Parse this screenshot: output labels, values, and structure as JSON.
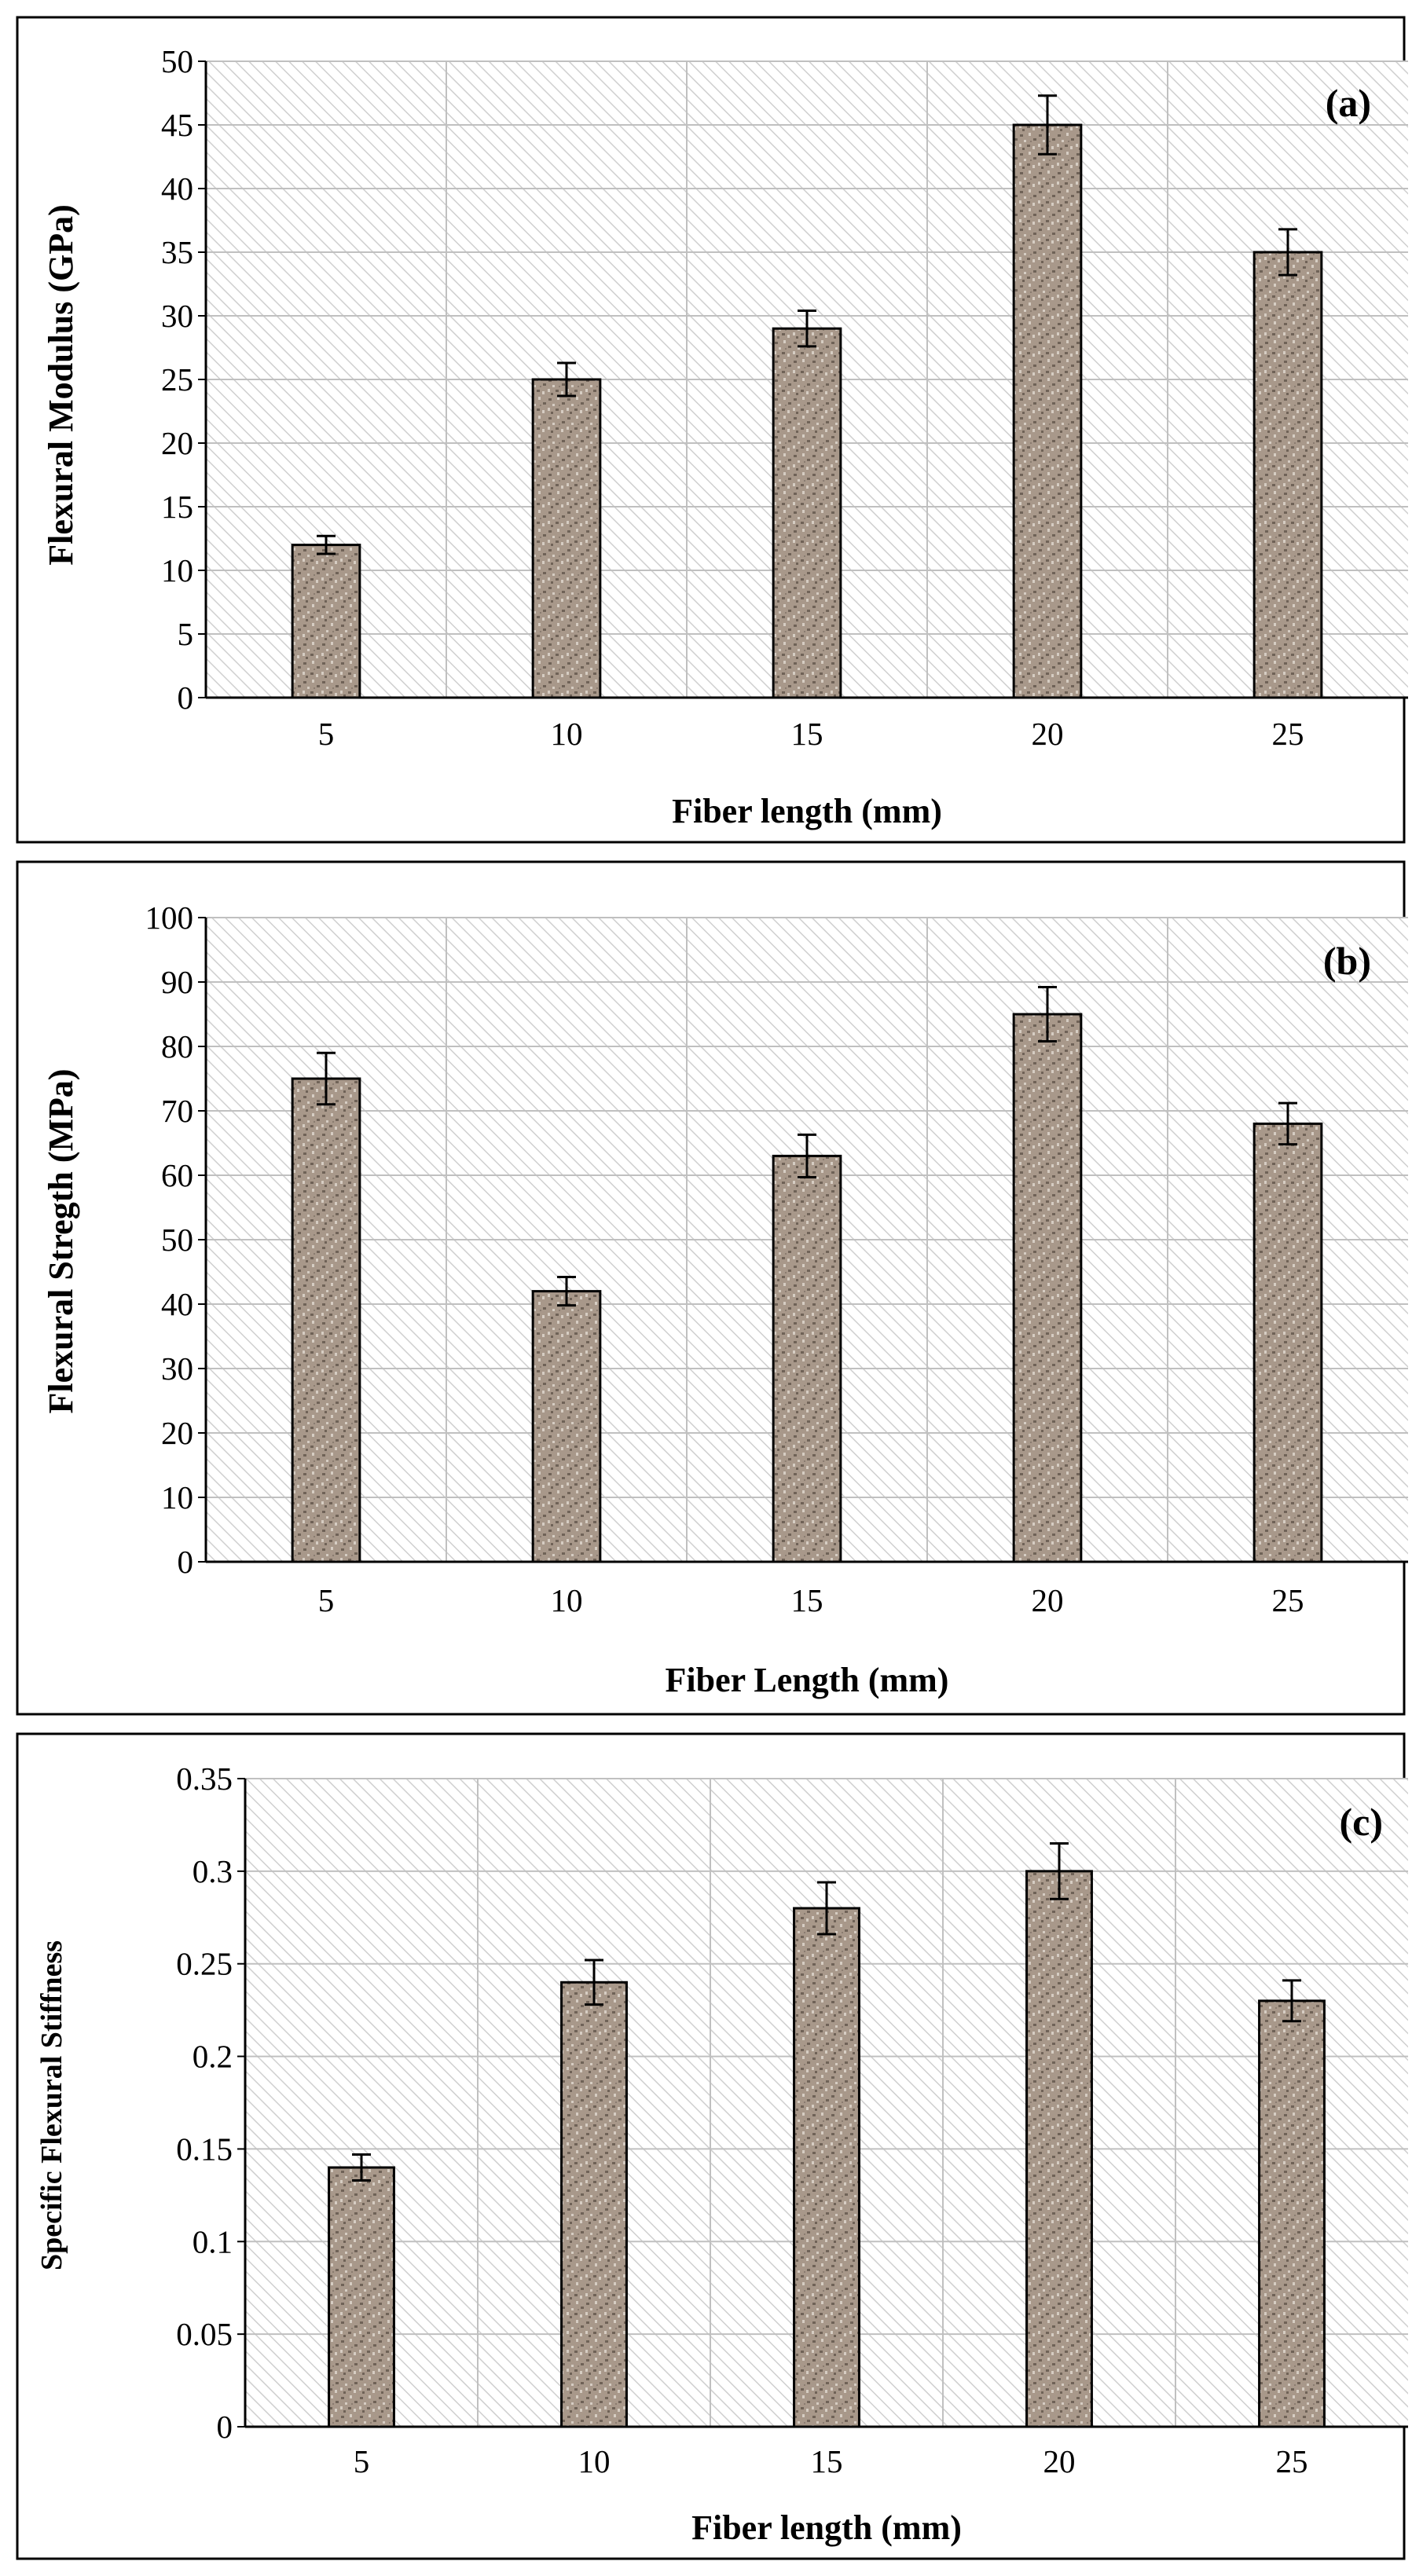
{
  "colors": {
    "frame": "#000000",
    "bar_base": "#a8988a",
    "bar_dark": "#6f6257",
    "bar_light": "#d6cdc3",
    "hatch": "#cfcfcf",
    "grid": "#c0c0c0"
  },
  "chart_data": [
    {
      "type": "bar",
      "panel_label": "(a)",
      "title": "",
      "xlabel": "Fiber length (mm)",
      "ylabel": "Flexural  Modulus (GPa)",
      "categories": [
        "5",
        "10",
        "15",
        "20",
        "25"
      ],
      "values": [
        12,
        25,
        29,
        45,
        35
      ],
      "errors": [
        0.7,
        1.3,
        1.4,
        2.3,
        1.8
      ],
      "ylim": [
        0,
        50
      ],
      "yticks": [
        0,
        5,
        10,
        15,
        20,
        25,
        30,
        35,
        40,
        45,
        50
      ],
      "ytick_labels": [
        "0",
        "5",
        "10",
        "15",
        "20",
        "25",
        "30",
        "35",
        "40",
        "45",
        "50"
      ],
      "grid": true
    },
    {
      "type": "bar",
      "panel_label": "(b)",
      "title": "",
      "xlabel": "Fiber Length (mm)",
      "ylabel": "Flexural  Stregth (MPa)",
      "categories": [
        "5",
        "10",
        "15",
        "20",
        "25"
      ],
      "values": [
        75,
        42,
        63,
        85,
        68
      ],
      "errors": [
        4,
        2.2,
        3.3,
        4.2,
        3.2
      ],
      "ylim": [
        0,
        100
      ],
      "yticks": [
        0,
        10,
        20,
        30,
        40,
        50,
        60,
        70,
        80,
        90,
        100
      ],
      "ytick_labels": [
        "0",
        "10",
        "20",
        "30",
        "40",
        "50",
        "60",
        "70",
        "80",
        "90",
        "100"
      ],
      "grid": true
    },
    {
      "type": "bar",
      "panel_label": "(c)",
      "title": "",
      "xlabel": "Fiber length (mm)",
      "ylabel": "Specific Flexural Stiffness",
      "categories": [
        "5",
        "10",
        "15",
        "20",
        "25"
      ],
      "values": [
        0.14,
        0.24,
        0.28,
        0.3,
        0.23
      ],
      "errors": [
        0.007,
        0.012,
        0.014,
        0.015,
        0.011
      ],
      "ylim": [
        0,
        0.35
      ],
      "yticks": [
        0,
        0.05,
        0.1,
        0.15,
        0.2,
        0.25,
        0.3,
        0.35
      ],
      "ytick_labels": [
        "0",
        "0.05",
        "0.1",
        "0.15",
        "0.2",
        "0.25",
        "0.3",
        "0.35"
      ],
      "grid": true
    }
  ]
}
